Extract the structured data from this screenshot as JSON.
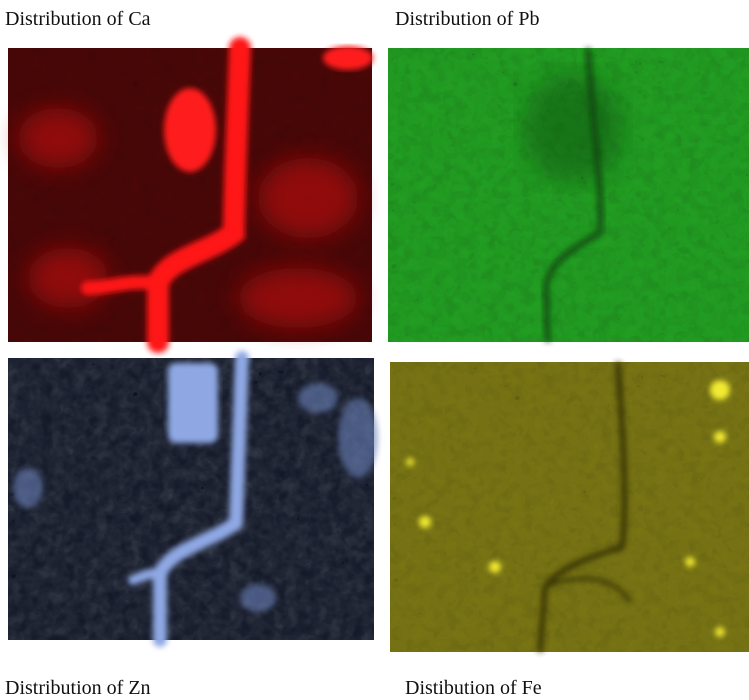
{
  "panels": [
    {
      "label": "Distribution of Ca"
    },
    {
      "label": "Distribution of Pb"
    },
    {
      "label": "Distribution of Zn"
    },
    {
      "label": "Distibution of Fe"
    }
  ]
}
